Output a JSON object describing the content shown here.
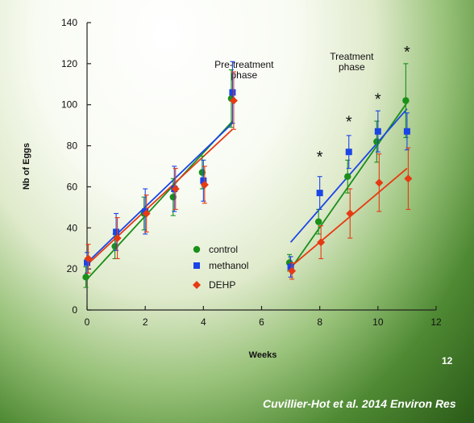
{
  "chart_data": {
    "type": "scatter",
    "xlabel": "Weeks",
    "ylabel": "Nb of Eggs",
    "xlim": [
      0,
      12
    ],
    "ylim": [
      0,
      140
    ],
    "x_ticks": [
      0,
      2,
      4,
      6,
      8,
      10,
      12
    ],
    "y_ticks": [
      0,
      20,
      40,
      60,
      80,
      100,
      120,
      140
    ],
    "grid": false,
    "legend_position": "middle-left",
    "annotations": [
      {
        "text": "Pre-treatment\nphase",
        "x": 5.4,
        "y": 118
      },
      {
        "text": "Treatment\nphase",
        "x": 9.1,
        "y": 122
      }
    ],
    "significance": [
      {
        "text": "*",
        "x": 8,
        "y": 72
      },
      {
        "text": "*",
        "x": 9,
        "y": 89
      },
      {
        "text": "*",
        "x": 10,
        "y": 100
      },
      {
        "text": "*",
        "x": 11,
        "y": 123
      }
    ],
    "series": [
      {
        "name": "control",
        "color": "#1a8f1a",
        "marker": "circle",
        "x": [
          0,
          1,
          2,
          3,
          4,
          5,
          7,
          8,
          9,
          10,
          11
        ],
        "y": [
          16,
          31,
          47,
          55,
          67,
          103,
          23,
          43,
          65,
          82,
          102
        ],
        "err": [
          5,
          6,
          8,
          9,
          8,
          14,
          4,
          6,
          8,
          10,
          18
        ],
        "fits": [
          [
            0,
            15,
            5,
            92
          ],
          [
            7,
            20,
            11,
            101
          ]
        ]
      },
      {
        "name": "methanol",
        "color": "#1a45e6",
        "marker": "square",
        "x": [
          0,
          1,
          2,
          3,
          4,
          5,
          7,
          8,
          9,
          10,
          11
        ],
        "y": [
          23,
          38,
          48,
          59,
          63,
          106,
          21,
          57,
          77,
          87,
          87
        ],
        "err": [
          5,
          9,
          11,
          11,
          10,
          15,
          5,
          8,
          8,
          10,
          9
        ],
        "fits": [
          [
            0,
            23,
            5,
            91
          ],
          [
            7,
            33,
            11,
            98
          ]
        ]
      },
      {
        "name": "DEHP",
        "color": "#e63a12",
        "marker": "diamond",
        "x": [
          0,
          1,
          2,
          3,
          4,
          5,
          7,
          8,
          9,
          10,
          11
        ],
        "y": [
          25,
          35,
          47,
          59,
          61,
          102,
          19,
          33,
          47,
          62,
          64
        ],
        "err": [
          7,
          10,
          9,
          10,
          9,
          14,
          4,
          8,
          12,
          14,
          15
        ],
        "fits": [
          [
            0,
            22,
            5,
            88
          ],
          [
            7,
            21,
            11,
            69
          ]
        ]
      }
    ]
  },
  "slide_number": "12",
  "citation": "Cuvillier-Hot et al. 2014 Environ Res"
}
